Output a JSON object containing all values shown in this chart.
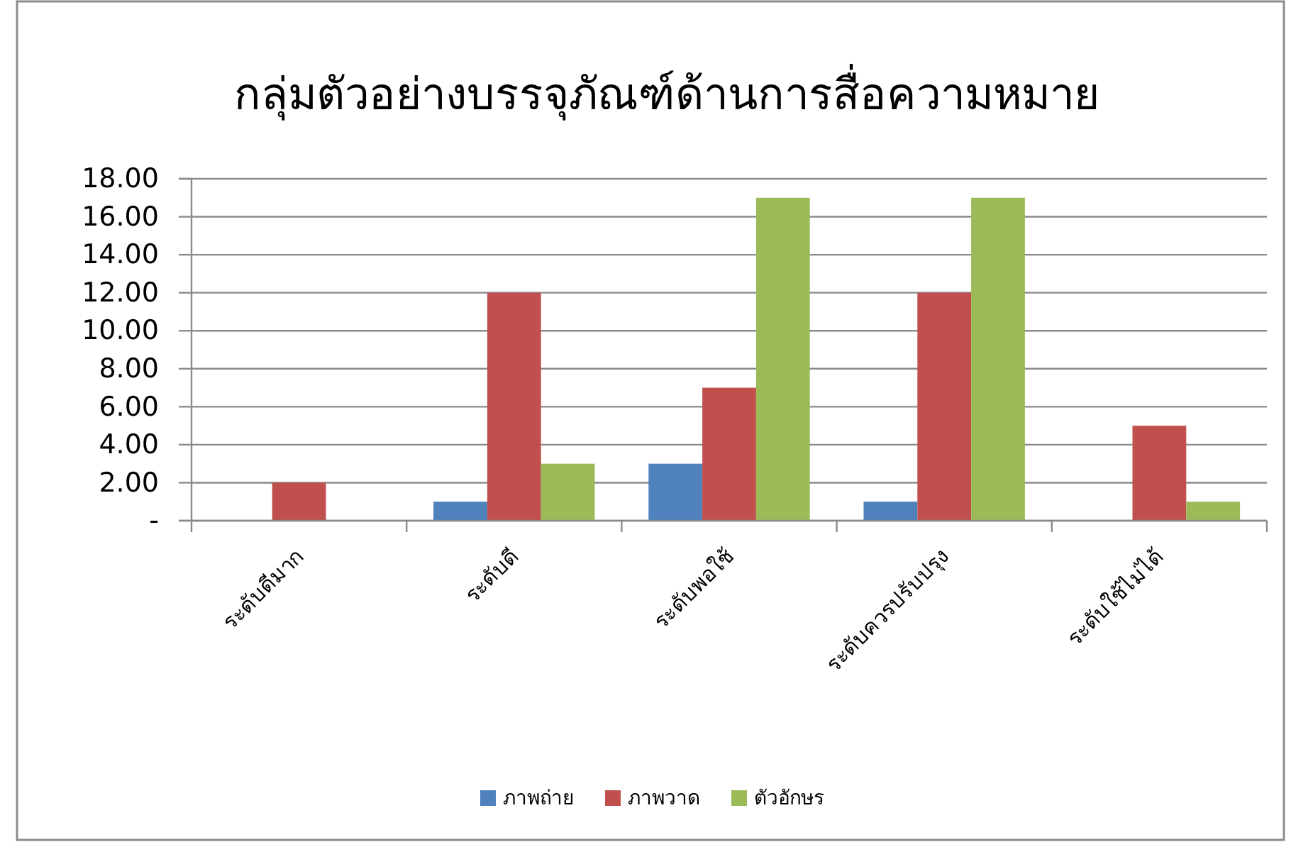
{
  "chart_data": {
    "type": "bar",
    "title": "กลุ่มตัวอย่างบรรจุภัณฑ์ด้านการสื่อความหมาย",
    "categories": [
      "ระดับดีมาก",
      "ระดับดี",
      "ระดับพอใช้",
      "ระดับควรปรับปรุง",
      "ระดับใช้ไม่ได้"
    ],
    "series": [
      {
        "name": "ภาพถ่าย",
        "color": "#4f81bd",
        "values": [
          0,
          1,
          3,
          1,
          0
        ]
      },
      {
        "name": "ภาพวาด",
        "color": "#c0504d",
        "values": [
          2,
          12,
          7,
          12,
          5
        ]
      },
      {
        "name": "ตัวอักษร",
        "color": "#9bbb59",
        "values": [
          0,
          3,
          17,
          17,
          1
        ]
      }
    ],
    "ylim": [
      0,
      18
    ],
    "yticks": [
      {
        "value": 0,
        "label": "-"
      },
      {
        "value": 2,
        "label": "2.00"
      },
      {
        "value": 4,
        "label": "4.00"
      },
      {
        "value": 6,
        "label": "6.00"
      },
      {
        "value": 8,
        "label": "8.00"
      },
      {
        "value": 10,
        "label": "10.00"
      },
      {
        "value": 12,
        "label": "12.00"
      },
      {
        "value": 14,
        "label": "14.00"
      },
      {
        "value": 16,
        "label": "16.00"
      },
      {
        "value": 18,
        "label": "18.00"
      }
    ],
    "grid": "y",
    "legend": "bottom"
  }
}
